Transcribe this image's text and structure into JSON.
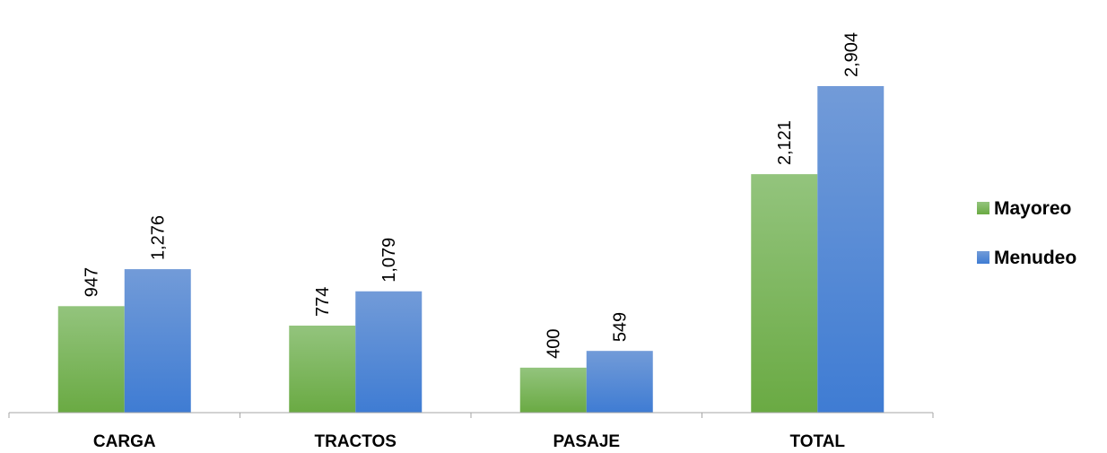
{
  "chart_data": {
    "type": "bar",
    "categories": [
      "CARGA",
      "TRACTOS",
      "PASAJE",
      "TOTAL"
    ],
    "series": [
      {
        "name": "Mayoreo",
        "values": [
          947,
          774,
          400,
          2121
        ],
        "color": "#70ad47"
      },
      {
        "name": "Menudeo",
        "values": [
          1276,
          1079,
          549,
          2904
        ],
        "color": "#4a86d8"
      }
    ],
    "data_labels": {
      "Mayoreo": [
        "947",
        "774",
        "400",
        "2,121"
      ],
      "Menudeo": [
        "1,276",
        "1,079",
        "549",
        "2,904"
      ]
    },
    "title": "",
    "xlabel": "",
    "ylabel": "",
    "ylim": [
      0,
      3000
    ],
    "grid": false,
    "legend_position": "right"
  }
}
